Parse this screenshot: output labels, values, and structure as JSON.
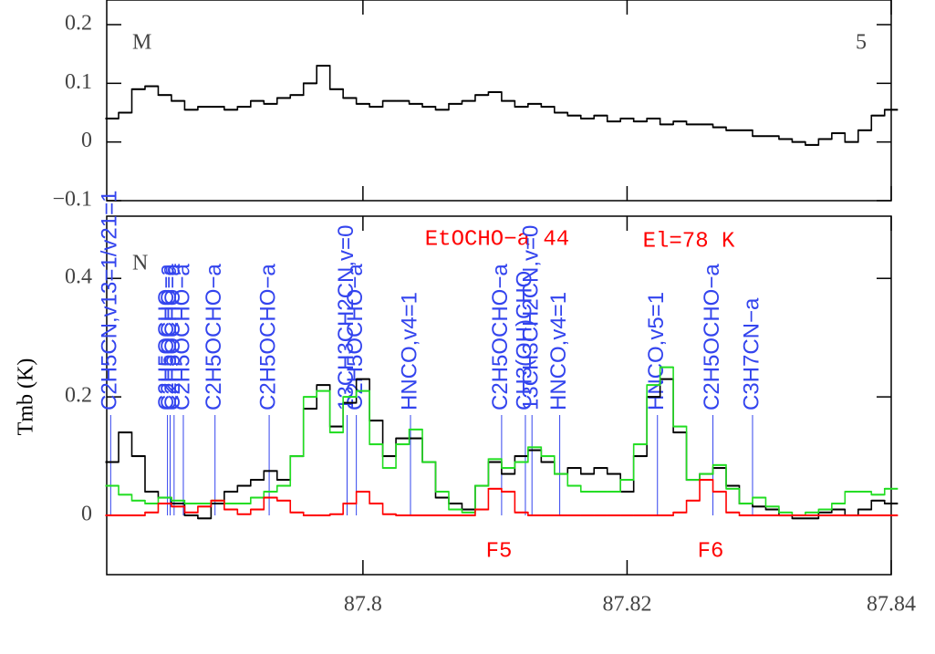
{
  "chart_data": [
    {
      "type": "line",
      "label": "M",
      "panel_number": "5",
      "x": [
        87.781,
        87.782,
        87.783,
        87.784,
        87.785,
        87.786,
        87.787,
        87.788,
        87.789,
        87.79,
        87.791,
        87.792,
        87.793,
        87.794,
        87.795,
        87.796,
        87.797,
        87.798,
        87.799,
        87.8,
        87.801,
        87.802,
        87.803,
        87.804,
        87.805,
        87.806,
        87.807,
        87.808,
        87.809,
        87.81,
        87.811,
        87.812,
        87.813,
        87.814,
        87.815,
        87.816,
        87.817,
        87.818,
        87.819,
        87.82,
        87.821,
        87.822,
        87.823,
        87.824,
        87.825,
        87.826,
        87.827,
        87.828,
        87.829,
        87.83,
        87.831,
        87.832,
        87.833,
        87.834,
        87.835,
        87.836,
        87.837,
        87.838,
        87.839,
        87.84
      ],
      "series": [
        {
          "color": "#000000",
          "values": [
            0.04,
            0.05,
            0.09,
            0.095,
            0.08,
            0.07,
            0.055,
            0.06,
            0.06,
            0.055,
            0.06,
            0.07,
            0.065,
            0.075,
            0.08,
            0.1,
            0.13,
            0.09,
            0.075,
            0.065,
            0.06,
            0.07,
            0.07,
            0.065,
            0.06,
            0.055,
            0.065,
            0.07,
            0.08,
            0.085,
            0.07,
            0.06,
            0.065,
            0.06,
            0.05,
            0.045,
            0.04,
            0.045,
            0.035,
            0.04,
            0.035,
            0.04,
            0.03,
            0.035,
            0.03,
            0.03,
            0.025,
            0.02,
            0.02,
            0.01,
            0.01,
            0.005,
            0.0,
            -0.005,
            0.005,
            0.015,
            0.0,
            0.02,
            0.045,
            0.055
          ]
        }
      ],
      "xlim": [
        87.7806,
        87.84
      ],
      "ylim": [
        -0.1,
        0.242
      ],
      "yticks": [
        {
          "value": -0.1,
          "label": "−0.1"
        },
        0,
        0.1,
        0.2
      ]
    },
    {
      "type": "line",
      "label": "N",
      "title": "EtOCHO−a 44",
      "energy_label": "El=78 K",
      "ylabel": "Tmb (K)",
      "features": [
        "F5",
        "F6"
      ],
      "x": [
        87.781,
        87.782,
        87.783,
        87.784,
        87.785,
        87.786,
        87.787,
        87.788,
        87.789,
        87.79,
        87.791,
        87.792,
        87.793,
        87.794,
        87.795,
        87.796,
        87.797,
        87.798,
        87.799,
        87.8,
        87.801,
        87.802,
        87.803,
        87.804,
        87.805,
        87.806,
        87.807,
        87.808,
        87.809,
        87.81,
        87.811,
        87.812,
        87.813,
        87.814,
        87.815,
        87.816,
        87.817,
        87.818,
        87.819,
        87.82,
        87.821,
        87.822,
        87.823,
        87.824,
        87.825,
        87.826,
        87.827,
        87.828,
        87.829,
        87.83,
        87.831,
        87.832,
        87.833,
        87.834,
        87.835,
        87.836,
        87.837,
        87.838,
        87.839,
        87.84
      ],
      "series": [
        {
          "color": "#000000",
          "values": [
            0.09,
            0.14,
            0.1,
            0.04,
            0.03,
            0.02,
            0.0,
            -0.005,
            0.02,
            0.04,
            0.05,
            0.06,
            0.075,
            0.06,
            0.1,
            0.18,
            0.22,
            0.15,
            0.19,
            0.23,
            0.16,
            0.1,
            0.13,
            0.13,
            0.09,
            0.03,
            0.02,
            0.01,
            0.05,
            0.09,
            0.07,
            0.1,
            0.11,
            0.09,
            0.07,
            0.08,
            0.07,
            0.08,
            0.07,
            0.04,
            0.1,
            0.2,
            0.23,
            0.14,
            0.06,
            0.07,
            0.08,
            0.05,
            0.02,
            0.015,
            0.01,
            0.0,
            -0.005,
            -0.005,
            0.005,
            0.01,
            0.0,
            0.01,
            0.025,
            0.02
          ]
        },
        {
          "color": "#22dd22",
          "values": [
            0.05,
            0.035,
            0.025,
            0.02,
            0.03,
            0.025,
            0.02,
            0.02,
            0.025,
            0.02,
            0.02,
            0.03,
            0.04,
            0.05,
            0.1,
            0.2,
            0.21,
            0.14,
            0.2,
            0.21,
            0.12,
            0.08,
            0.12,
            0.145,
            0.09,
            0.04,
            0.01,
            0.005,
            0.05,
            0.095,
            0.08,
            0.09,
            0.115,
            0.1,
            0.07,
            0.05,
            0.04,
            0.04,
            0.04,
            0.06,
            0.12,
            0.22,
            0.25,
            0.15,
            0.06,
            0.07,
            0.085,
            0.045,
            0.02,
            0.03,
            0.015,
            0.005,
            0.0,
            0.005,
            0.01,
            0.02,
            0.04,
            0.04,
            0.035,
            0.045
          ]
        },
        {
          "color": "#ff0000",
          "values": [
            0,
            0,
            0,
            0.005,
            0.02,
            0.015,
            0.005,
            0.015,
            0.025,
            0.01,
            0.002,
            0.01,
            0.03,
            0.025,
            0.005,
            0,
            0,
            0.002,
            0.02,
            0.04,
            0.02,
            0.002,
            0,
            0,
            0,
            0,
            0,
            0,
            0.01,
            0.045,
            0.04,
            0.005,
            0,
            0,
            0,
            0,
            0,
            0,
            0,
            0,
            0,
            0,
            0,
            0.005,
            0.025,
            0.06,
            0.04,
            0.005,
            0,
            0,
            0,
            0,
            0,
            0,
            0,
            0,
            0,
            0,
            0,
            0
          ]
        }
      ],
      "lines": {
        "color": "#3344ee",
        "x": [
          87.7809,
          87.7852,
          87.7854,
          87.7857,
          87.7864,
          87.7888,
          87.7929,
          87.7988,
          87.7995,
          87.8036,
          87.8105,
          87.8123,
          87.8128,
          87.8149,
          87.8223,
          87.8265,
          87.8295
        ],
        "labels": [
          "C2H5CN,v13=1/v21=1",
          "C2H5OCHO−a",
          "C2H5OCHO−a",
          "C2H5OCHO−a",
          "C2H5OCHO−a",
          "C2H5OCHO−a",
          "C2H5OCHO−a",
          "13CH3CH2CN,v=0",
          "C2H5OCHO−a",
          "HNCO,v4=1",
          "C2H5OCHO−a",
          "CH3(OH)CHO",
          "13CH3CH2CN,v=0",
          "HNCO,v4=1",
          "HNCO,v5=1",
          "C2H5OCHO−a",
          "C3H7CN−a"
        ]
      },
      "xlim": [
        87.7806,
        87.84
      ],
      "ylim": [
        -0.1,
        0.505
      ],
      "xticks": [
        87.8,
        87.82,
        87.84
      ],
      "yticks": [
        0,
        0.2,
        0.4
      ]
    }
  ]
}
